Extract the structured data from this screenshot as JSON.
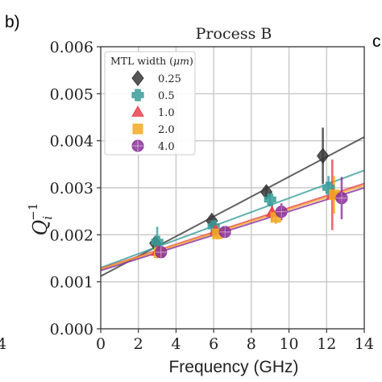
{
  "panel_labels": {
    "current": "b)",
    "next_partial": "c"
  },
  "left_partial_tick": "4",
  "chart_data": {
    "type": "scatter",
    "title": "Process B",
    "xlabel": "Frequency (GHz)",
    "ylabel": "Q",
    "ylabel_sub": "i",
    "ylabel_sup": "−1",
    "xlim": [
      0,
      14
    ],
    "ylim": [
      0.0,
      0.006
    ],
    "xticks": [
      0,
      2,
      4,
      6,
      8,
      10,
      12,
      14
    ],
    "xtick_labels": [
      "0",
      "2",
      "4",
      "6",
      "8",
      "10",
      "12",
      "14"
    ],
    "yticks": [
      0.0,
      0.001,
      0.002,
      0.003,
      0.004,
      0.005,
      0.006
    ],
    "ytick_labels": [
      "0.000",
      "0.001",
      "0.002",
      "0.003",
      "0.004",
      "0.005",
      "0.006"
    ],
    "grid": true,
    "legend": {
      "title": "MTL width (μm)",
      "title_prefix": "MTL width (",
      "title_unit": "μm",
      "title_suffix": ")",
      "placement": "top-left"
    },
    "series": [
      {
        "name": "0.25",
        "marker": "diamond",
        "color": "#3a3a3a",
        "points": [
          {
            "x": 2.9,
            "y": 0.00182,
            "err": 0.00012
          },
          {
            "x": 5.9,
            "y": 0.0023,
            "err": 0.0001
          },
          {
            "x": 8.8,
            "y": 0.00291,
            "err": 0.00012
          },
          {
            "x": 11.8,
            "y": 0.00368,
            "err": 0.0006
          }
        ],
        "fit": {
          "y0": 0.00112,
          "y14": 0.00408
        }
      },
      {
        "name": "0.5",
        "marker": "plus",
        "color": "#3a9e9b",
        "points": [
          {
            "x": 3.0,
            "y": 0.00185,
            "err": 0.00032
          },
          {
            "x": 6.0,
            "y": 0.00218,
            "err": 0.0001
          },
          {
            "x": 9.0,
            "y": 0.00275,
            "err": 0.00015
          },
          {
            "x": 12.1,
            "y": 0.003,
            "err": 0.00025
          }
        ],
        "fit": {
          "y0": 0.0013,
          "y14": 0.00337
        }
      },
      {
        "name": "1.0",
        "marker": "triangle",
        "color": "#e8434e",
        "points": [
          {
            "x": 3.0,
            "y": 0.00165,
            "err": 0.00015
          },
          {
            "x": 6.1,
            "y": 0.0021,
            "err": 0.00012
          },
          {
            "x": 9.1,
            "y": 0.00248,
            "err": 0.00018
          },
          {
            "x": 12.3,
            "y": 0.00285,
            "err": 0.00075
          }
        ],
        "fit": {
          "y0": 0.00128,
          "y14": 0.00309
        }
      },
      {
        "name": "2.0",
        "marker": "square",
        "color": "#f2aa24",
        "points": [
          {
            "x": 3.1,
            "y": 0.00162,
            "err": 0.0001
          },
          {
            "x": 6.2,
            "y": 0.00202,
            "err": 0.00012
          },
          {
            "x": 9.3,
            "y": 0.00237,
            "err": 0.00014
          },
          {
            "x": 12.4,
            "y": 0.00285,
            "err": 0.0004
          }
        ],
        "fit": {
          "y0": 0.00127,
          "y14": 0.00305
        }
      },
      {
        "name": "4.0",
        "marker": "circle",
        "color": "#8b2f9a",
        "points": [
          {
            "x": 3.2,
            "y": 0.00163,
            "err": 0.0001
          },
          {
            "x": 6.6,
            "y": 0.00206,
            "err": 0.0001
          },
          {
            "x": 9.6,
            "y": 0.00249,
            "err": 0.00018
          },
          {
            "x": 12.8,
            "y": 0.00278,
            "err": 0.00045
          }
        ],
        "fit": {
          "y0": 0.00124,
          "y14": 0.003
        }
      }
    ]
  }
}
